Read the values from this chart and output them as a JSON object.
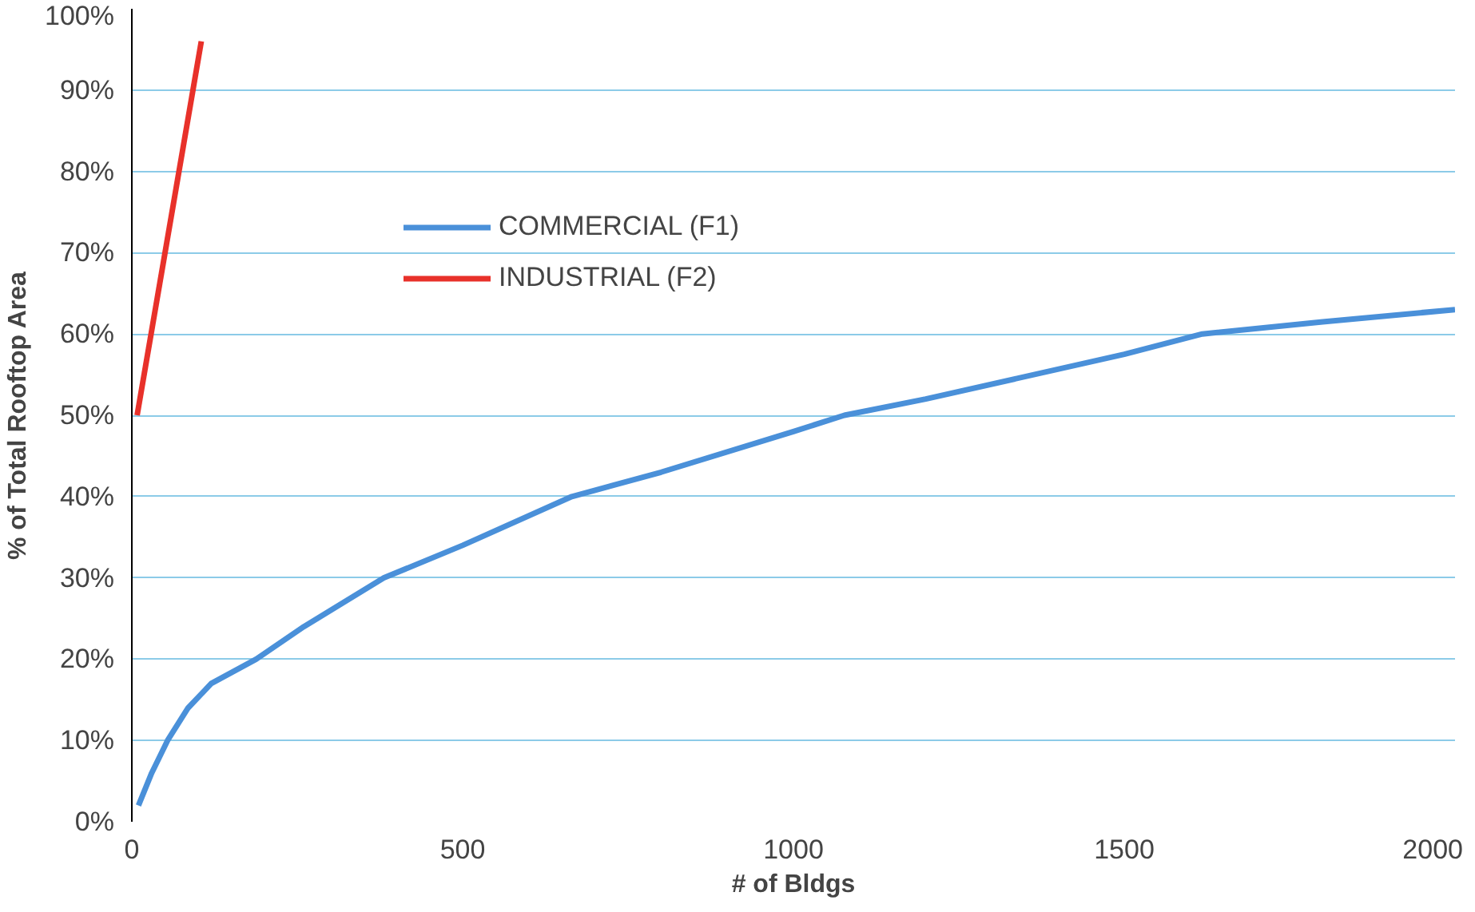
{
  "chart_data": {
    "type": "line",
    "xlabel": "# of Bldgs",
    "ylabel": "% of Total Rooftop Area",
    "xlim": [
      0,
      2000
    ],
    "xticks": [
      0,
      500,
      1000,
      1500,
      2000
    ],
    "ylim": [
      0,
      100
    ],
    "yticks": [
      {
        "value": 0,
        "label": "0%"
      },
      {
        "value": 10,
        "label": "10%"
      },
      {
        "value": 20,
        "label": "20%"
      },
      {
        "value": 30,
        "label": "30%"
      },
      {
        "value": 40,
        "label": "40%"
      },
      {
        "value": 50,
        "label": "50%"
      },
      {
        "value": 60,
        "label": "60%"
      },
      {
        "value": 70,
        "label": "70%"
      },
      {
        "value": 80,
        "label": "80%"
      },
      {
        "value": 90,
        "label": "90%"
      },
      {
        "value": 100,
        "label": "100%"
      }
    ],
    "grid": "y",
    "legend": "top",
    "marker": "none",
    "line_style": "solid",
    "series": [
      {
        "name": "COMMERCIAL (F1)",
        "color": "#4a90d9",
        "x": [
          10,
          30,
          54,
          85,
          120,
          188,
          260,
          381,
          500,
          665,
          800,
          1000,
          1077,
          1200,
          1500,
          1618,
          1800,
          2000
        ],
        "values": [
          2,
          6,
          10,
          14,
          17,
          20,
          24,
          30,
          34,
          40,
          43,
          48,
          50,
          52,
          57.5,
          60,
          61.5,
          63
        ]
      },
      {
        "name": "INDUSTRIAL (F2)",
        "color": "#e8312a",
        "x": [
          8,
          105
        ],
        "values": [
          50,
          96
        ]
      }
    ]
  }
}
